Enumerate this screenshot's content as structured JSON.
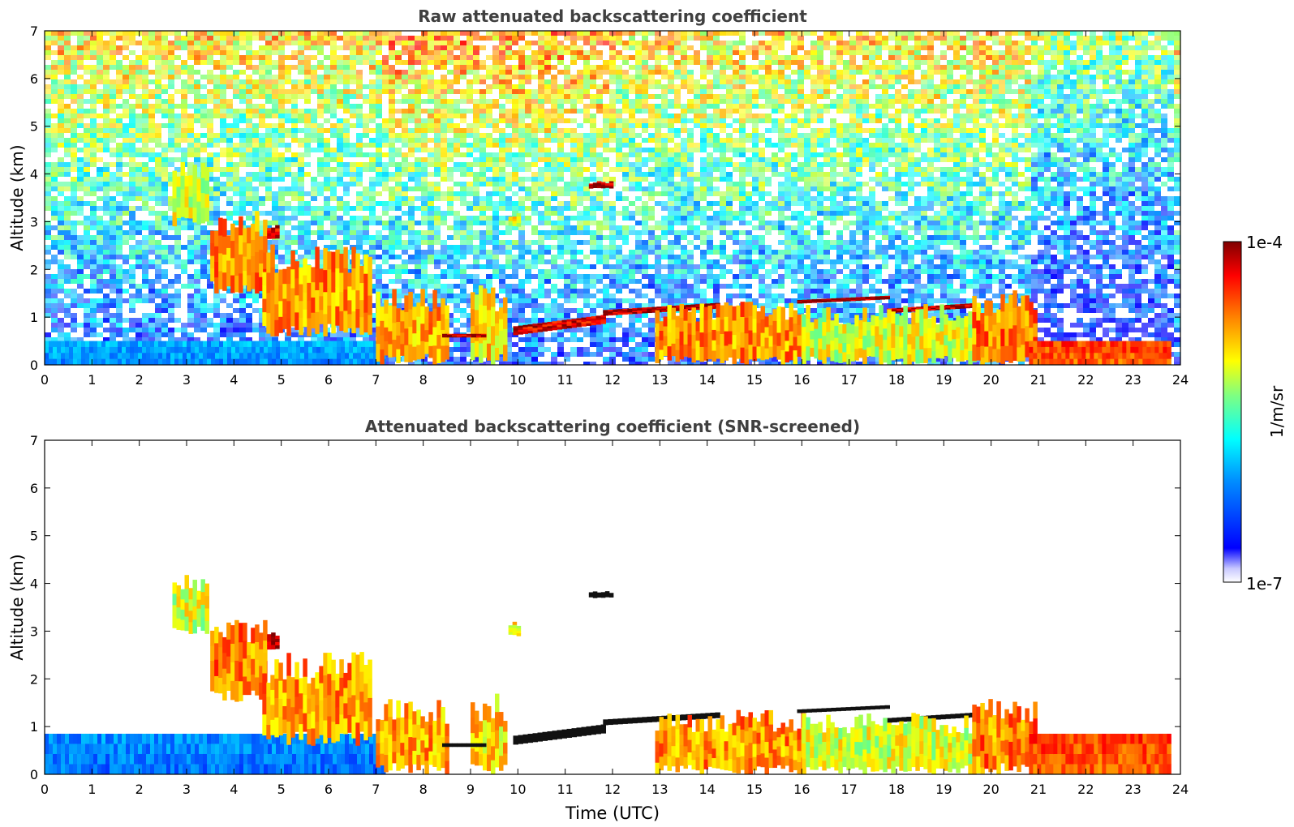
{
  "chart_data": [
    {
      "type": "heatmap",
      "title": "Raw attenuated backscattering coefficient",
      "xlabel": "",
      "ylabel": "Altitude (km)",
      "xlim": [
        0,
        24
      ],
      "ylim": [
        0,
        7
      ],
      "x_ticks": [
        "0",
        "1",
        "2",
        "3",
        "4",
        "5",
        "6",
        "7",
        "8",
        "9",
        "10",
        "11",
        "12",
        "13",
        "14",
        "15",
        "16",
        "17",
        "18",
        "19",
        "20",
        "21",
        "22",
        "23",
        "24"
      ],
      "y_ticks": [
        "0",
        "1",
        "2",
        "3",
        "4",
        "5",
        "6",
        "7"
      ],
      "noise_background": true,
      "features": [
        {
          "kind": "surface_layer",
          "t0": 0,
          "t1": 7.2,
          "h0": 0,
          "h1": 0.5,
          "level": 0.22
        },
        {
          "kind": "cloud",
          "t0": 2.7,
          "t1": 3.4,
          "h0": 2.9,
          "h1": 4.3,
          "level": 0.55
        },
        {
          "kind": "cloud",
          "t0": 3.5,
          "t1": 4.7,
          "h0": 1.5,
          "h1": 3.3,
          "level": 0.72
        },
        {
          "kind": "cloud",
          "t0": 4.6,
          "t1": 6.9,
          "h0": 0.6,
          "h1": 2.6,
          "level": 0.7
        },
        {
          "kind": "cloud",
          "t0": 4.7,
          "t1": 4.95,
          "h0": 2.6,
          "h1": 3.0,
          "level": 0.92
        },
        {
          "kind": "cloud",
          "t0": 7.0,
          "t1": 8.5,
          "h0": 0,
          "h1": 1.6,
          "level": 0.68
        },
        {
          "kind": "cloud",
          "t0": 9.0,
          "t1": 9.7,
          "h0": 0,
          "h1": 1.7,
          "level": 0.62
        },
        {
          "kind": "layer",
          "t0": 8.4,
          "t1": 9.3,
          "h0": 0.5,
          "h1": 0.65,
          "level": 0.93
        },
        {
          "kind": "layer",
          "t0": 9.9,
          "t1": 11.8,
          "h0": 0.65,
          "h1": 1.05,
          "level": 0.9
        },
        {
          "kind": "layer",
          "t0": 11.8,
          "t1": 14.2,
          "h0": 1.05,
          "h1": 1.3,
          "level": 0.95
        },
        {
          "kind": "cloud",
          "t0": 12.9,
          "t1": 16.0,
          "h0": 0,
          "h1": 1.35,
          "level": 0.7
        },
        {
          "kind": "layer",
          "t0": 15.9,
          "t1": 17.8,
          "h0": 1.3,
          "h1": 1.45,
          "level": 0.97
        },
        {
          "kind": "layer",
          "t0": 17.8,
          "t1": 19.7,
          "h0": 1.1,
          "h1": 1.3,
          "level": 0.95
        },
        {
          "kind": "cloud",
          "t0": 16.0,
          "t1": 19.8,
          "h0": 0,
          "h1": 1.3,
          "level": 0.55
        },
        {
          "kind": "cloud",
          "t0": 19.6,
          "t1": 20.9,
          "h0": 0,
          "h1": 1.6,
          "level": 0.72
        },
        {
          "kind": "surface_layer",
          "t0": 20.8,
          "t1": 23.8,
          "h0": 0,
          "h1": 0.5,
          "level": 0.8
        },
        {
          "kind": "cloud",
          "t0": 11.5,
          "t1": 12.0,
          "h0": 3.7,
          "h1": 3.85,
          "level": 0.95
        },
        {
          "kind": "cloud",
          "t0": 9.8,
          "t1": 10.0,
          "h0": 2.9,
          "h1": 3.2,
          "level": 0.6
        }
      ]
    },
    {
      "type": "heatmap",
      "title": "Attenuated backscattering coefficient (SNR-screened)",
      "xlabel": "Time (UTC)",
      "ylabel": "Altitude (km)",
      "xlim": [
        0,
        24
      ],
      "ylim": [
        0,
        7
      ],
      "x_ticks": [
        "0",
        "1",
        "2",
        "3",
        "4",
        "5",
        "6",
        "7",
        "8",
        "9",
        "10",
        "11",
        "12",
        "13",
        "14",
        "15",
        "16",
        "17",
        "18",
        "19",
        "20",
        "21",
        "22",
        "23",
        "24"
      ],
      "y_ticks": [
        "0",
        "1",
        "2",
        "3",
        "4",
        "5",
        "6",
        "7"
      ],
      "noise_background": false,
      "features": [
        {
          "kind": "surface_layer",
          "t0": 0,
          "t1": 7.2,
          "h0": 0,
          "h1": 0.85,
          "level": 0.18
        },
        {
          "kind": "cloud",
          "t0": 2.7,
          "t1": 3.4,
          "h0": 2.9,
          "h1": 4.3,
          "level": 0.55
        },
        {
          "kind": "cloud",
          "t0": 3.5,
          "t1": 4.7,
          "h0": 1.5,
          "h1": 3.3,
          "level": 0.72
        },
        {
          "kind": "cloud",
          "t0": 4.6,
          "t1": 6.9,
          "h0": 0.6,
          "h1": 2.6,
          "level": 0.7
        },
        {
          "kind": "cloud",
          "t0": 4.7,
          "t1": 4.95,
          "h0": 2.6,
          "h1": 3.0,
          "level": 0.92
        },
        {
          "kind": "cloud",
          "t0": 7.0,
          "t1": 8.5,
          "h0": 0,
          "h1": 1.6,
          "level": 0.68
        },
        {
          "kind": "cloud",
          "t0": 9.0,
          "t1": 9.7,
          "h0": 0,
          "h1": 1.7,
          "level": 0.62
        },
        {
          "kind": "layer",
          "t0": 8.4,
          "t1": 9.3,
          "h0": 0.5,
          "h1": 0.65,
          "level": 1.0
        },
        {
          "kind": "layer",
          "t0": 9.9,
          "t1": 11.8,
          "h0": 0.65,
          "h1": 1.05,
          "level": 1.0
        },
        {
          "kind": "layer",
          "t0": 11.8,
          "t1": 14.2,
          "h0": 1.05,
          "h1": 1.3,
          "level": 1.0
        },
        {
          "kind": "cloud",
          "t0": 12.9,
          "t1": 16.0,
          "h0": 0,
          "h1": 1.35,
          "level": 0.7
        },
        {
          "kind": "layer",
          "t0": 15.9,
          "t1": 17.8,
          "h0": 1.3,
          "h1": 1.45,
          "level": 1.0
        },
        {
          "kind": "layer",
          "t0": 17.8,
          "t1": 19.7,
          "h0": 1.1,
          "h1": 1.3,
          "level": 1.0
        },
        {
          "kind": "cloud",
          "t0": 16.0,
          "t1": 19.8,
          "h0": 0,
          "h1": 1.3,
          "level": 0.55
        },
        {
          "kind": "cloud",
          "t0": 19.6,
          "t1": 20.9,
          "h0": 0,
          "h1": 1.6,
          "level": 0.72
        },
        {
          "kind": "surface_layer",
          "t0": 20.8,
          "t1": 23.8,
          "h0": 0,
          "h1": 0.85,
          "level": 0.8
        },
        {
          "kind": "cloud",
          "t0": 11.5,
          "t1": 12.0,
          "h0": 3.7,
          "h1": 3.85,
          "level": 1.0
        },
        {
          "kind": "cloud",
          "t0": 9.8,
          "t1": 10.0,
          "h0": 2.9,
          "h1": 3.2,
          "level": 0.6
        }
      ]
    }
  ],
  "colorbar": {
    "label": "1/m/sr",
    "max_label": "1e-4",
    "min_label": "1e-7",
    "colormap": [
      "#ffffff",
      "#0000ff",
      "#0088ff",
      "#00ffff",
      "#80ff80",
      "#ffff00",
      "#ff8000",
      "#ff0000",
      "#800000"
    ],
    "colormap_name": "jet"
  }
}
